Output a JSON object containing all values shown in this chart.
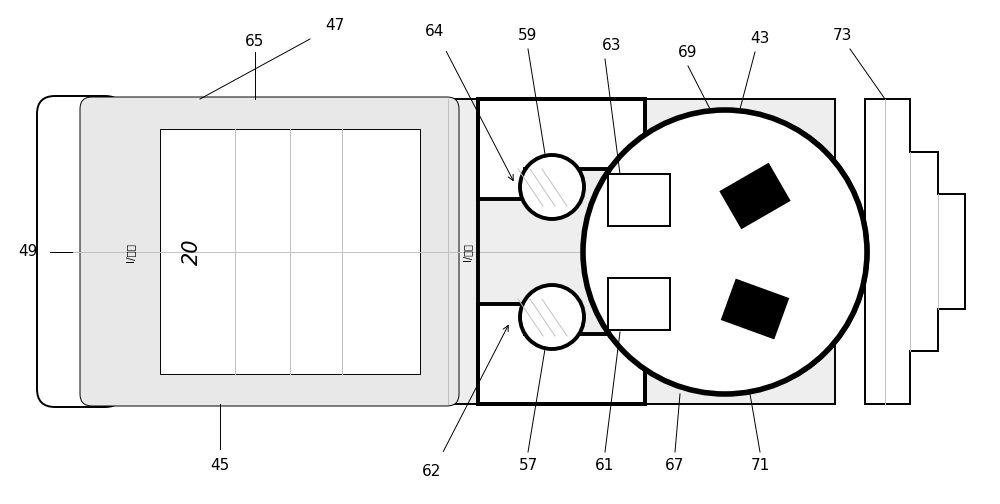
{
  "bg_color": "#ffffff",
  "line_color": "#000000",
  "gray_line": "#c0c0c0",
  "panel_gray": "#e8e8e8",
  "figsize": [
    10.0,
    5.04
  ],
  "dpi": 100,
  "lw_thin": 0.7,
  "lw_med": 1.4,
  "lw_thick": 2.8,
  "lw_xthick": 4.0,
  "label_fs": 11
}
